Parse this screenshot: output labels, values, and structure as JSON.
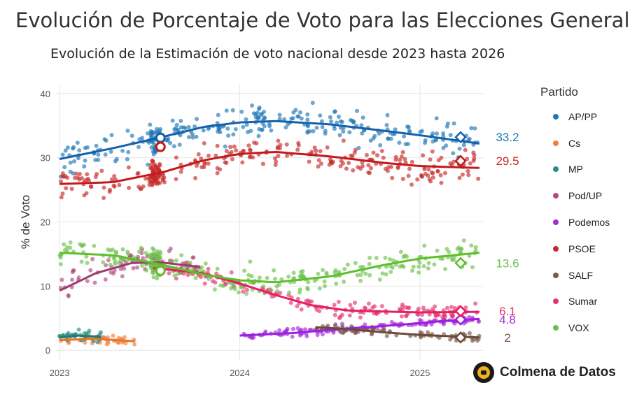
{
  "page": {
    "title": "Evolución de Porcentaje de Voto para las Elecciones Generales",
    "brand": "Colmena de Datos"
  },
  "chart_data": {
    "type": "scatter",
    "title": "Evolución de la Estimación de voto nacional desde 2023 hasta 2026",
    "xlabel": "",
    "ylabel": "% de Voto",
    "xlim": [
      2022.98,
      2025.35
    ],
    "ylim": [
      -1.5,
      41.5
    ],
    "x_ticks": [
      2023,
      2024,
      2025
    ],
    "x_tick_labels": [
      "2023",
      "2024",
      "2025"
    ],
    "y_ticks": [
      0,
      10,
      20,
      30,
      40
    ],
    "y_tick_labels": [
      "0",
      "10",
      "20",
      "30",
      "40"
    ],
    "grid": true,
    "legend_title": "Partido",
    "legend_position": "right",
    "series": [
      {
        "name": "AP/PP",
        "color": "#1f77b4",
        "line_color": "#1560ad",
        "start": 2023.0,
        "end": 2025.33,
        "trend_x": [
          2023.0,
          2023.3,
          2023.58,
          2023.8,
          2024.0,
          2024.2,
          2024.5,
          2024.8,
          2025.0,
          2025.33
        ],
        "trend_y": [
          29.8,
          31.5,
          33.3,
          34.8,
          35.5,
          35.7,
          35.2,
          34.2,
          33.5,
          32.2
        ],
        "spread": 1.7,
        "n": 300,
        "election_x": 2023.56,
        "election_y": 33.1,
        "final_x": 2025.35,
        "final_y": 33.2,
        "final_label": "33.2"
      },
      {
        "name": "Cs",
        "color": "#f07f3c",
        "line_color": "#e8732a",
        "start": 2023.0,
        "end": 2023.42,
        "trend_x": [
          2023.0,
          2023.2,
          2023.42
        ],
        "trend_y": [
          1.6,
          1.8,
          1.4
        ],
        "spread": 0.5,
        "n": 40
      },
      {
        "name": "MP",
        "color": "#2a8c82",
        "line_color": "#1f7a70",
        "start": 2023.0,
        "end": 2023.23,
        "trend_x": [
          2023.0,
          2023.1,
          2023.23
        ],
        "trend_y": [
          2.0,
          2.3,
          2.1
        ],
        "spread": 0.6,
        "n": 40
      },
      {
        "name": "Pod/UP",
        "color": "#b4487e",
        "line_color": "#9c3b6e",
        "start": 2023.0,
        "end": 2023.78,
        "trend_x": [
          2023.0,
          2023.2,
          2023.4,
          2023.56,
          2023.78
        ],
        "trend_y": [
          9.3,
          12.0,
          13.6,
          13.7,
          13.0
        ],
        "spread": 1.4,
        "n": 80
      },
      {
        "name": "Podemos",
        "color": "#a52bd8",
        "line_color": "#9a1fe0",
        "start": 2024.0,
        "end": 2025.33,
        "trend_x": [
          2024.0,
          2024.3,
          2024.6,
          2024.9,
          2025.1,
          2025.33
        ],
        "trend_y": [
          2.3,
          2.7,
          3.4,
          4.0,
          4.5,
          4.9
        ],
        "spread": 0.45,
        "n": 130,
        "final_x": 2025.35,
        "final_y": 4.8,
        "final_label": "4.8"
      },
      {
        "name": "PSOE",
        "color": "#c62828",
        "line_color": "#c21a1a",
        "start": 2023.0,
        "end": 2025.33,
        "trend_x": [
          2023.0,
          2023.3,
          2023.58,
          2023.8,
          2024.0,
          2024.2,
          2024.5,
          2024.8,
          2025.0,
          2025.33
        ],
        "trend_y": [
          25.9,
          26.2,
          27.8,
          29.6,
          30.6,
          30.9,
          30.2,
          29.2,
          28.7,
          28.4
        ],
        "spread": 1.7,
        "n": 300,
        "election_x": 2023.56,
        "election_y": 31.7,
        "final_x": 2025.35,
        "final_y": 29.5,
        "final_label": "29.5"
      },
      {
        "name": "SALF",
        "color": "#7a5848",
        "line_color": "#6b4a3a",
        "start": 2024.42,
        "end": 2025.33,
        "trend_x": [
          2024.42,
          2024.6,
          2024.8,
          2025.0,
          2025.33
        ],
        "trend_y": [
          3.6,
          3.3,
          2.8,
          2.4,
          2.0
        ],
        "spread": 0.5,
        "n": 80,
        "final_x": 2025.35,
        "final_y": 2.0,
        "final_label": "2"
      },
      {
        "name": "Sumar",
        "color": "#e3336f",
        "line_color": "#e61e63",
        "start": 2023.52,
        "end": 2025.33,
        "trend_x": [
          2023.52,
          2023.8,
          2024.0,
          2024.2,
          2024.4,
          2024.6,
          2025.0,
          2025.33
        ],
        "trend_y": [
          12.8,
          12.0,
          10.4,
          8.6,
          7.0,
          6.2,
          5.9,
          6.0
        ],
        "spread": 0.8,
        "n": 170,
        "final_x": 2025.35,
        "final_y": 6.1,
        "final_label": "6.1"
      },
      {
        "name": "VOX",
        "color": "#6cc04a",
        "line_color": "#5cc02a",
        "start": 2023.0,
        "end": 2025.33,
        "trend_x": [
          2023.0,
          2023.3,
          2023.56,
          2023.8,
          2024.0,
          2024.2,
          2024.5,
          2024.8,
          2025.0,
          2025.33
        ],
        "trend_y": [
          15.2,
          14.8,
          13.4,
          11.8,
          10.9,
          10.6,
          11.5,
          13.3,
          14.3,
          15.2
        ],
        "spread": 1.4,
        "n": 300,
        "election_x": 2023.56,
        "election_y": 12.4,
        "final_x": 2025.35,
        "final_y": 13.6,
        "final_label": "13.6"
      }
    ]
  }
}
